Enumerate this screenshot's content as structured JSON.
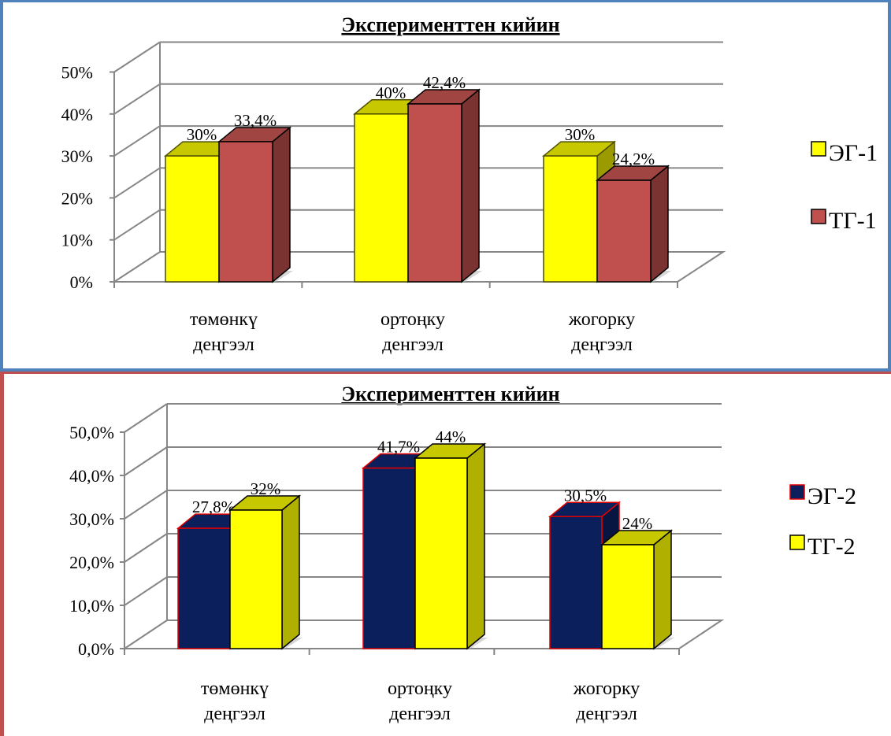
{
  "chart_data": [
    {
      "type": "bar",
      "title": "Эксперименттен кийин",
      "categories": [
        [
          "төмөнкү",
          "деңгээл"
        ],
        [
          "ортоңку",
          "денгээл"
        ],
        [
          "жогорку",
          "деңгээл"
        ]
      ],
      "yticks": [
        "0%",
        "10%",
        "20%",
        "30%",
        "40%",
        "50%"
      ],
      "ylim": [
        0,
        50
      ],
      "series": [
        {
          "name": "ЭГ-1",
          "values": [
            30,
            40,
            30
          ],
          "labels": [
            "30%",
            "40%",
            "30%"
          ],
          "color": "#ffff00",
          "side": "#9b9b00",
          "top": "#c8c800",
          "edge": "#4d4d00"
        },
        {
          "name": "ТГ-1",
          "values": [
            33.4,
            42.4,
            24.2
          ],
          "labels": [
            "33,4%",
            "42,4%",
            "24,2%"
          ],
          "color": "#c0504d",
          "side": "#7b3331",
          "top": "#a04542",
          "edge": "#000000"
        }
      ],
      "legend": "right",
      "grid": true
    },
    {
      "type": "bar",
      "title": "Эксперименттен кийин",
      "categories": [
        [
          "төмөнкү",
          "деңгээл"
        ],
        [
          "ортоңку",
          "денгээл"
        ],
        [
          "жогорку",
          "деңгээл"
        ]
      ],
      "yticks": [
        "0,0%",
        "10,0%",
        "20,0%",
        "30,0%",
        "40,0%",
        "50,0%"
      ],
      "ylim": [
        0,
        50
      ],
      "series": [
        {
          "name": "ЭГ-2",
          "values": [
            27.8,
            41.7,
            30.5
          ],
          "labels": [
            "27,8%",
            "41,7%",
            "30,5%"
          ],
          "color": "#0a1f5c",
          "side": "#071640",
          "top": "#0a1f5c",
          "edge": "#e00000"
        },
        {
          "name": "ТГ-2",
          "values": [
            32,
            44,
            24
          ],
          "labels": [
            "32%",
            "44%",
            "24%"
          ],
          "color": "#ffff00",
          "side": "#b0b000",
          "top": "#c8c800",
          "edge": "#000000"
        }
      ],
      "legend": "right",
      "grid": true
    }
  ]
}
